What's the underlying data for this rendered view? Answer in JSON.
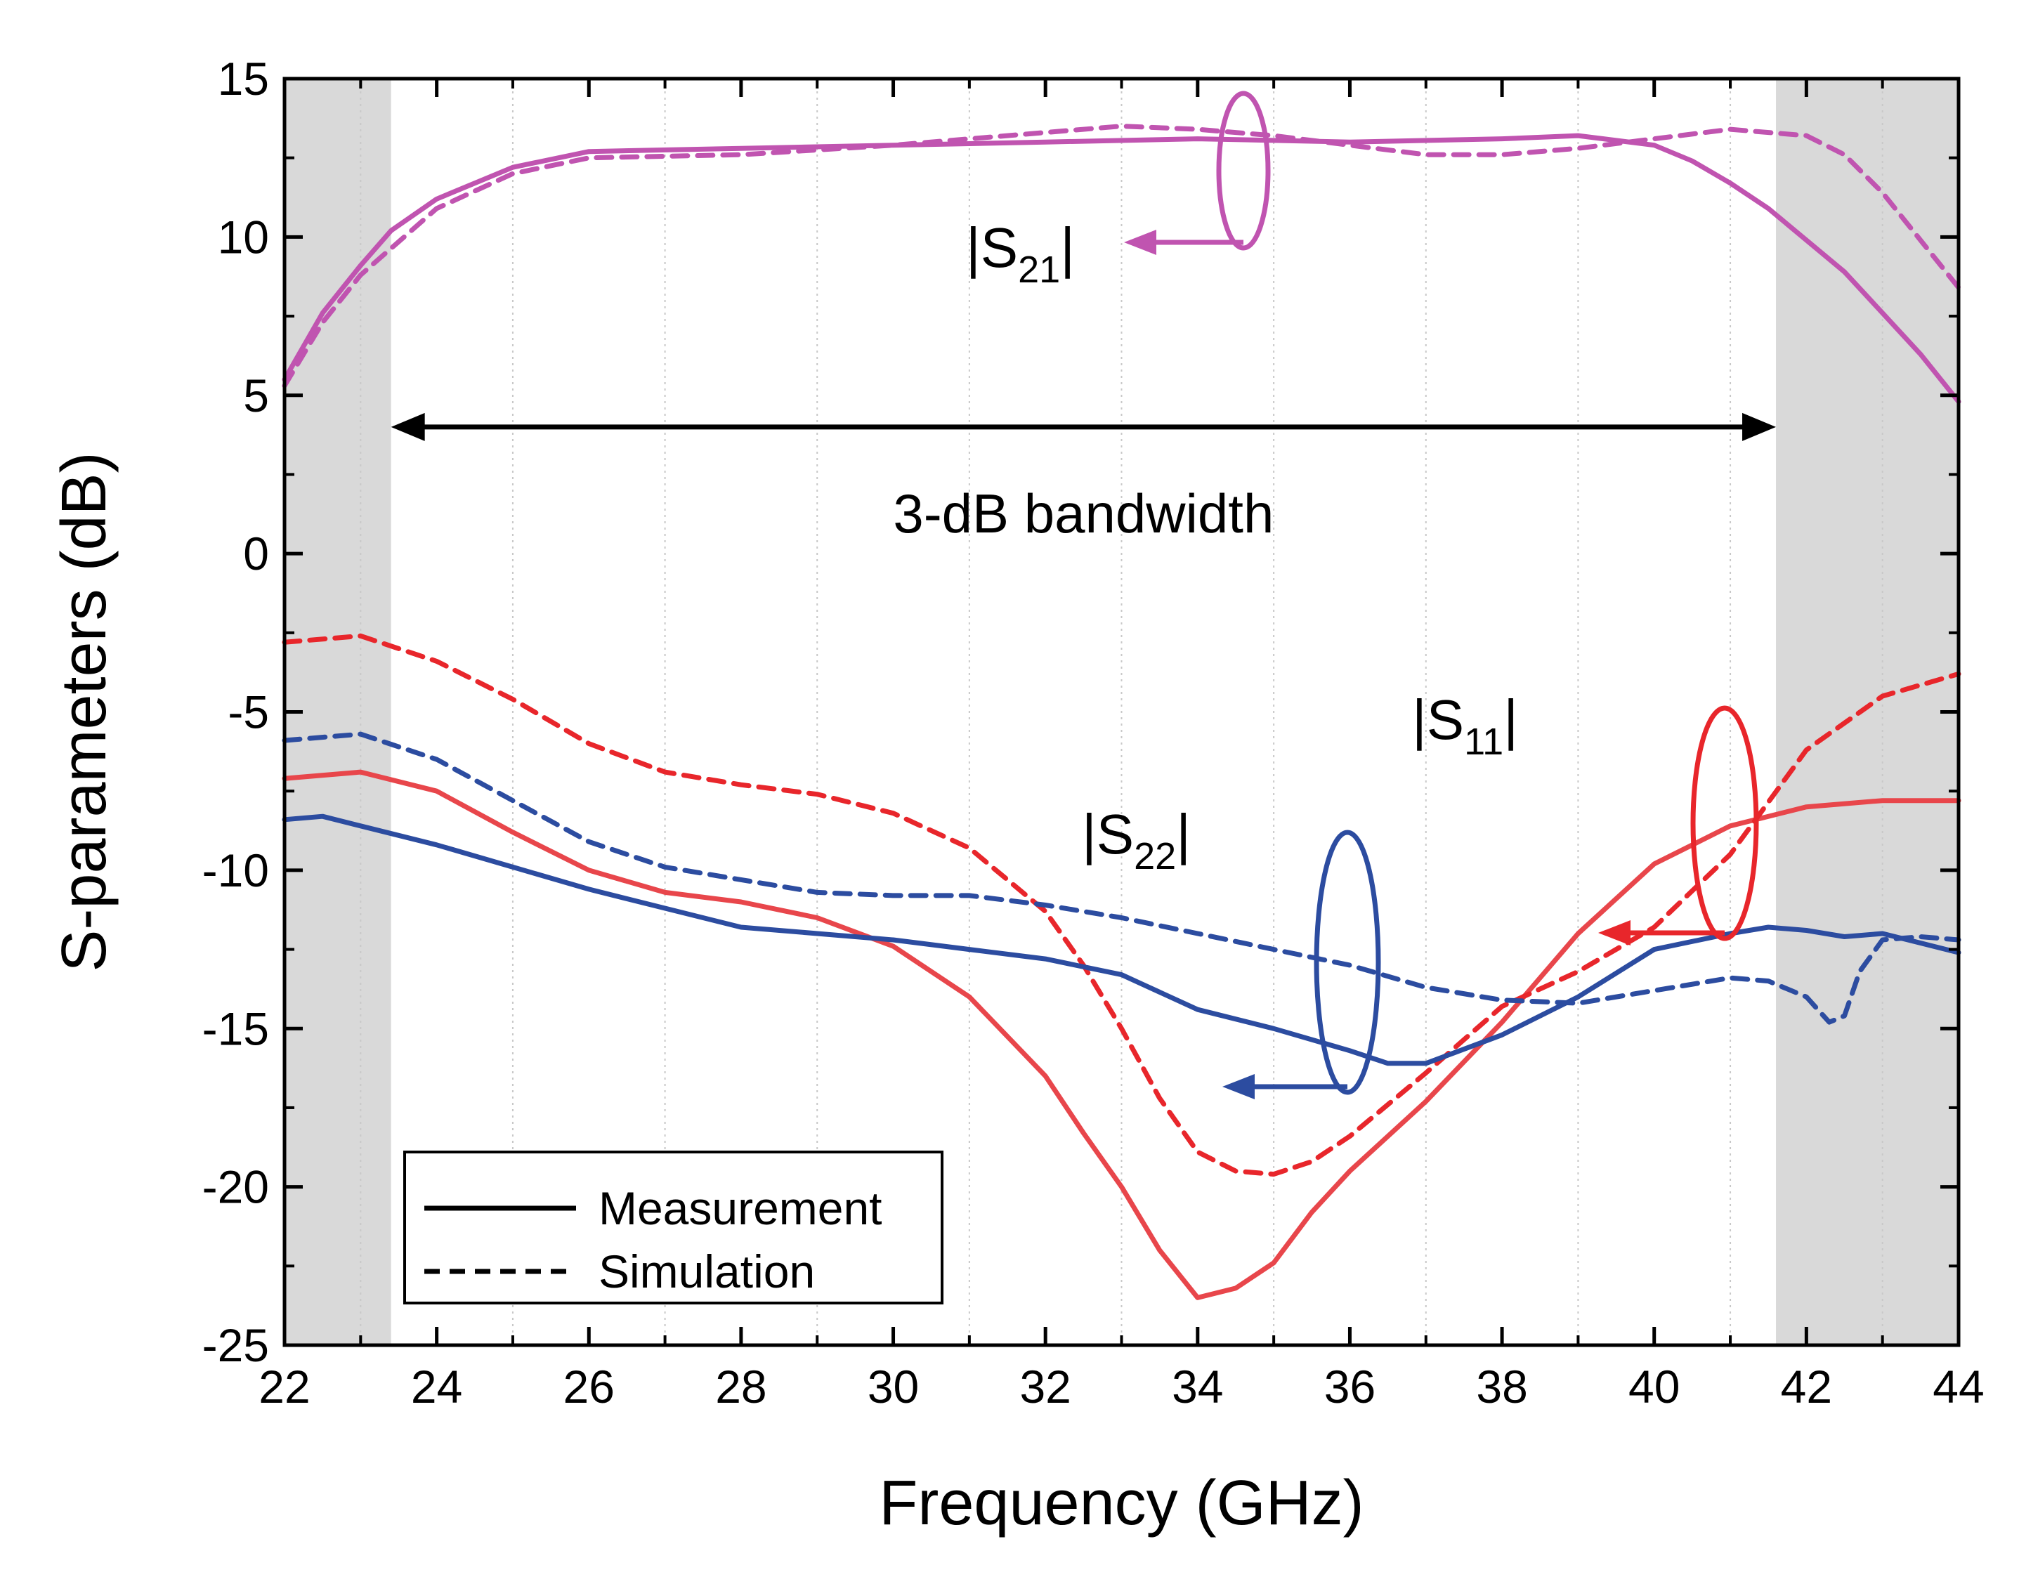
{
  "chart_data": {
    "type": "line",
    "xlabel": "Frequency (GHz)",
    "ylabel": "S-parameters (dB)",
    "xlim": [
      22,
      44
    ],
    "ylim": [
      -25,
      15
    ],
    "xticks": [
      "22",
      "24",
      "26",
      "28",
      "30",
      "32",
      "34",
      "36",
      "38",
      "40",
      "42",
      "44"
    ],
    "yticks": [
      "15",
      "10",
      "5",
      "0",
      "-5",
      "-10",
      "-15",
      "-20",
      "-25"
    ],
    "grid": "vertical dotted lines at minor x ticks",
    "shaded_bands": [
      [
        22,
        23.4
      ],
      [
        41.6,
        44
      ]
    ],
    "bandwidth_arrow": {
      "from": 23.4,
      "to": 41.6,
      "y": 4,
      "label": "3-dB bandwidth"
    },
    "legend": {
      "placement": "bottom-left",
      "entries": [
        {
          "label": "Measurement",
          "style": "solid"
        },
        {
          "label": "Simulation",
          "style": "dashed"
        }
      ]
    },
    "annotations": [
      {
        "main": "|S",
        "sub": "21",
        "close": "|",
        "color": "#c054b0"
      },
      {
        "main": "|S",
        "sub": "11",
        "close": "|",
        "color": "#e8262b"
      },
      {
        "main": "|S",
        "sub": "22",
        "close": "|",
        "color": "#2c4ca0"
      }
    ],
    "series": [
      {
        "key": "s21_meas",
        "style": "solid",
        "color": "#c054b0",
        "x": [
          22,
          22.5,
          23,
          23.4,
          24,
          25,
          26,
          28,
          30,
          32,
          34,
          36,
          38,
          39,
          40,
          40.5,
          41,
          41.5,
          42,
          42.5,
          43,
          43.5,
          44
        ],
        "y": [
          5.5,
          7.6,
          9.1,
          10.2,
          11.2,
          12.2,
          12.7,
          12.8,
          12.9,
          13.0,
          13.1,
          13.0,
          13.1,
          13.2,
          12.9,
          12.4,
          11.7,
          10.9,
          9.9,
          8.9,
          7.6,
          6.3,
          4.8
        ]
      },
      {
        "key": "s21_sim",
        "style": "dashed",
        "color": "#c054b0",
        "x": [
          22,
          22.5,
          23,
          24,
          25,
          26,
          28,
          30,
          32,
          33,
          34,
          35,
          36,
          37,
          38,
          39,
          40,
          41,
          42,
          42.5,
          43,
          43.5,
          44
        ],
        "y": [
          5.3,
          7.3,
          8.8,
          10.9,
          12.0,
          12.5,
          12.6,
          12.9,
          13.3,
          13.5,
          13.4,
          13.2,
          12.9,
          12.6,
          12.6,
          12.8,
          13.1,
          13.4,
          13.2,
          12.6,
          11.4,
          9.9,
          8.4
        ]
      },
      {
        "key": "s11_meas",
        "style": "solid",
        "color": "#e8464b",
        "x": [
          22,
          23,
          24,
          25,
          26,
          27,
          28,
          29,
          30,
          31,
          32,
          32.5,
          33,
          33.5,
          34,
          34.5,
          35,
          35.5,
          36,
          37,
          38,
          39,
          40,
          41,
          42,
          43,
          44
        ],
        "y": [
          -7.1,
          -6.9,
          -7.5,
          -8.8,
          -10.0,
          -10.7,
          -11.0,
          -11.5,
          -12.4,
          -14.0,
          -16.5,
          -18.3,
          -20.0,
          -22.0,
          -23.5,
          -23.2,
          -22.4,
          -20.8,
          -19.5,
          -17.3,
          -14.8,
          -12.0,
          -9.8,
          -8.6,
          -8.0,
          -7.8,
          -7.8
        ]
      },
      {
        "key": "s11_sim",
        "style": "dashed",
        "color": "#e8262b",
        "x": [
          22,
          23,
          24,
          25,
          26,
          27,
          28,
          29,
          30,
          31,
          32,
          32.5,
          33,
          33.5,
          34,
          34.5,
          35,
          35.5,
          36,
          37,
          38,
          39,
          40,
          41,
          42,
          43,
          44
        ],
        "y": [
          -2.8,
          -2.6,
          -3.4,
          -4.6,
          -6.0,
          -6.9,
          -7.3,
          -7.6,
          -8.2,
          -9.3,
          -11.3,
          -13.0,
          -15.0,
          -17.2,
          -18.9,
          -19.5,
          -19.6,
          -19.2,
          -18.4,
          -16.4,
          -14.3,
          -13.2,
          -11.8,
          -9.5,
          -6.2,
          -4.5,
          -3.8
        ]
      },
      {
        "key": "s22_meas",
        "style": "solid",
        "color": "#2c4ca0",
        "x": [
          22,
          22.5,
          23,
          24,
          25,
          26,
          27,
          28,
          29,
          30,
          31,
          32,
          33,
          34,
          35,
          36,
          36.5,
          37,
          38,
          39,
          40,
          41,
          41.5,
          42,
          42.5,
          43,
          43.5,
          44
        ],
        "y": [
          -8.4,
          -8.3,
          -8.6,
          -9.2,
          -9.9,
          -10.6,
          -11.2,
          -11.8,
          -12.0,
          -12.2,
          -12.5,
          -12.8,
          -13.3,
          -14.4,
          -15.0,
          -15.7,
          -16.1,
          -16.1,
          -15.2,
          -14.0,
          -12.5,
          -12.0,
          -11.8,
          -11.9,
          -12.1,
          -12.0,
          -12.3,
          -12.6
        ]
      },
      {
        "key": "s22_sim",
        "style": "dashed",
        "color": "#2c4ca0",
        "x": [
          22,
          23,
          24,
          25,
          26,
          27,
          28,
          29,
          30,
          31,
          32,
          33,
          34,
          35,
          36,
          37,
          38,
          39,
          40,
          41,
          41.5,
          42,
          42.3,
          42.5,
          42.7,
          43,
          43.5,
          44
        ],
        "y": [
          -5.9,
          -5.7,
          -6.5,
          -7.8,
          -9.1,
          -9.9,
          -10.3,
          -10.7,
          -10.8,
          -10.8,
          -11.1,
          -11.5,
          -12.0,
          -12.5,
          -13.0,
          -13.7,
          -14.1,
          -14.2,
          -13.8,
          -13.4,
          -13.5,
          -14.0,
          -14.8,
          -14.6,
          -13.2,
          -12.2,
          -12.1,
          -12.2
        ]
      }
    ]
  }
}
